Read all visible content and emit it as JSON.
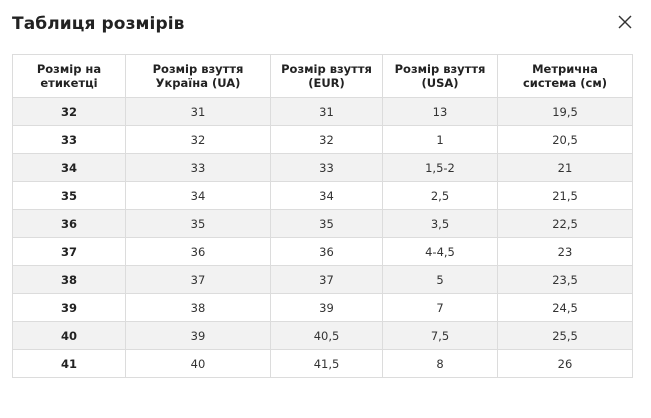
{
  "modal": {
    "title": "Таблиця розмірів"
  },
  "table": {
    "headers": [
      [
        "Розмір на",
        "етикетці"
      ],
      [
        "Розмір взуття",
        "Україна (UA)"
      ],
      [
        "Розмір взуття",
        "(EUR)"
      ],
      [
        "Розмір взуття",
        "(USA)"
      ],
      [
        "Метрична",
        "система (см)"
      ]
    ],
    "rows": [
      [
        "32",
        "31",
        "31",
        "13",
        "19,5"
      ],
      [
        "33",
        "32",
        "32",
        "1",
        "20,5"
      ],
      [
        "34",
        "33",
        "33",
        "1,5-2",
        "21"
      ],
      [
        "35",
        "34",
        "34",
        "2,5",
        "21,5"
      ],
      [
        "36",
        "35",
        "35",
        "3,5",
        "22,5"
      ],
      [
        "37",
        "36",
        "36",
        "4-4,5",
        "23"
      ],
      [
        "38",
        "37",
        "37",
        "5",
        "23,5"
      ],
      [
        "39",
        "38",
        "39",
        "7",
        "24,5"
      ],
      [
        "40",
        "39",
        "40,5",
        "7,5",
        "25,5"
      ],
      [
        "41",
        "40",
        "41,5",
        "8",
        "26"
      ]
    ]
  },
  "icons": {
    "close": "close-icon"
  },
  "colors": {
    "row_shade": "#f2f2f2",
    "border": "#dcdcdc"
  }
}
